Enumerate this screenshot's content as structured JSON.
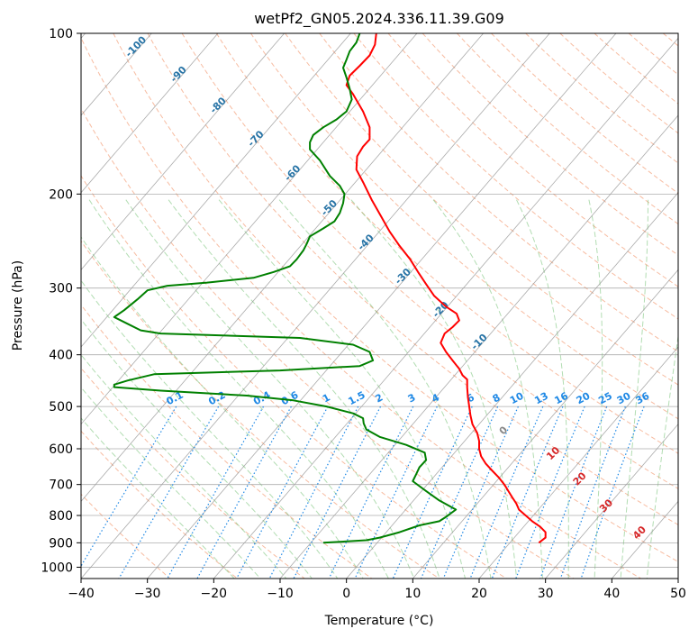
{
  "chart_data": {
    "type": "line",
    "title": "wetPf2_GN05.2024.336.11.39.G09",
    "xlabel": "Temperature (°C)",
    "ylabel": "Pressure (hPa)",
    "xlim": [
      -40,
      50
    ],
    "ylim": [
      1050,
      100
    ],
    "y_scale": "log",
    "x_ticks": [
      -40,
      -30,
      -20,
      -10,
      0,
      10,
      20,
      30,
      40,
      50
    ],
    "y_ticks": [
      100,
      200,
      300,
      400,
      500,
      600,
      700,
      800,
      900,
      1000
    ],
    "grid": true,
    "series": [
      {
        "color": "#ff0000",
        "points": [
          [
            29.0,
            900
          ],
          [
            30.0,
            880
          ],
          [
            30.0,
            860
          ],
          [
            29.2,
            840
          ],
          [
            28.0,
            820
          ],
          [
            27.0,
            800
          ],
          [
            26.0,
            780
          ],
          [
            25.6,
            760
          ],
          [
            25.0,
            740
          ],
          [
            24.4,
            720
          ],
          [
            23.8,
            700
          ],
          [
            23.0,
            680
          ],
          [
            22.0,
            660
          ],
          [
            21.0,
            640
          ],
          [
            20.3,
            620
          ],
          [
            20.0,
            600
          ],
          [
            20.0,
            580
          ],
          [
            19.7,
            560
          ],
          [
            19.0,
            540
          ],
          [
            18.7,
            520
          ],
          [
            18.5,
            500
          ],
          [
            18.3,
            480
          ],
          [
            18.2,
            460
          ],
          [
            18.2,
            445
          ],
          [
            17.5,
            437
          ],
          [
            17.0,
            425
          ],
          [
            16.0,
            410
          ],
          [
            15.0,
            395
          ],
          [
            14.2,
            380
          ],
          [
            14.8,
            365
          ],
          [
            16.0,
            355
          ],
          [
            17.0,
            345
          ],
          [
            16.6,
            335
          ],
          [
            15.0,
            325
          ],
          [
            13.2,
            310
          ],
          [
            12.0,
            295
          ],
          [
            10.8,
            280
          ],
          [
            9.6,
            265
          ],
          [
            8.0,
            250
          ],
          [
            6.5,
            235
          ],
          [
            5.2,
            220
          ],
          [
            3.8,
            205
          ],
          [
            2.5,
            190
          ],
          [
            1.5,
            180
          ],
          [
            1.6,
            170
          ],
          [
            2.5,
            163
          ],
          [
            3.5,
            158
          ],
          [
            3.5,
            150
          ],
          [
            2.5,
            140
          ],
          [
            1.0,
            130
          ],
          [
            0.0,
            125
          ],
          [
            0.5,
            120
          ],
          [
            2.0,
            115
          ],
          [
            3.5,
            110
          ],
          [
            4.3,
            105
          ],
          [
            4.5,
            100
          ]
        ]
      },
      {
        "color": "#008000",
        "points": [
          [
            -3.5,
            900
          ],
          [
            3.0,
            890
          ],
          [
            5.0,
            880
          ],
          [
            8.0,
            860
          ],
          [
            11.0,
            835
          ],
          [
            14.0,
            820
          ],
          [
            15.0,
            805
          ],
          [
            16.5,
            780
          ],
          [
            14.0,
            750
          ],
          [
            12.0,
            720
          ],
          [
            10.0,
            690
          ],
          [
            10.5,
            670
          ],
          [
            11.0,
            650
          ],
          [
            12.0,
            630
          ],
          [
            11.8,
            610
          ],
          [
            9.0,
            590
          ],
          [
            5.0,
            570
          ],
          [
            3.0,
            552
          ],
          [
            2.6,
            538
          ],
          [
            2.5,
            526
          ],
          [
            1.0,
            515
          ],
          [
            -3.0,
            500
          ],
          [
            -8.0,
            487
          ],
          [
            -15.0,
            477
          ],
          [
            -28.0,
            467
          ],
          [
            -35.0,
            460
          ],
          [
            -35.0,
            455
          ],
          [
            -33.0,
            447
          ],
          [
            -29.0,
            435
          ],
          [
            -10.0,
            428
          ],
          [
            2.0,
            420
          ],
          [
            4.0,
            410
          ],
          [
            3.5,
            395
          ],
          [
            1.0,
            383
          ],
          [
            -7.0,
            372
          ],
          [
            -28.0,
            365
          ],
          [
            -31.0,
            360
          ],
          [
            -33.0,
            350
          ],
          [
            -35.0,
            340
          ],
          [
            -33.5,
            330
          ],
          [
            -31.5,
            315
          ],
          [
            -30.0,
            303
          ],
          [
            -27.0,
            297
          ],
          [
            -21.0,
            293
          ],
          [
            -14.0,
            287
          ],
          [
            -11.0,
            280
          ],
          [
            -8.5,
            273
          ],
          [
            -7.5,
            265
          ],
          [
            -6.5,
            255
          ],
          [
            -6.0,
            248
          ],
          [
            -5.5,
            240
          ],
          [
            -3.5,
            232
          ],
          [
            -1.8,
            225
          ],
          [
            -1.0,
            217
          ],
          [
            -0.5,
            208
          ],
          [
            -0.3,
            200
          ],
          [
            -1.0,
            193
          ],
          [
            -2.5,
            185
          ],
          [
            -4.0,
            173
          ],
          [
            -5.5,
            165
          ],
          [
            -5.5,
            160
          ],
          [
            -5.0,
            155
          ],
          [
            -3.5,
            150
          ],
          [
            -1.5,
            145
          ],
          [
            0.0,
            140
          ],
          [
            0.8,
            133
          ],
          [
            0.5,
            127
          ],
          [
            0.0,
            121
          ],
          [
            -0.5,
            116
          ],
          [
            0.0,
            112
          ],
          [
            0.5,
            108
          ],
          [
            1.5,
            104
          ],
          [
            2.0,
            100
          ]
        ]
      }
    ],
    "dry_adiabat_labels": [
      "-100",
      "-90",
      "-80",
      "-70",
      "-60",
      "-50",
      "-40",
      "-30",
      "-20",
      "-10"
    ],
    "mixing_ratio_labels": [
      "0.1",
      "0.2",
      "0.4",
      "0.6",
      "1",
      "1.5",
      "2",
      "3",
      "4",
      "6",
      "8",
      "10",
      "13",
      "16",
      "20",
      "25",
      "30",
      "36"
    ],
    "moist_adiabat_labels": [
      "0",
      "10",
      "20",
      "30",
      "40"
    ],
    "colors": {
      "dry_adiabat": "#f4a582",
      "moist_adiabat": "#66bb66",
      "mixing_ratio": "#1e88e5",
      "isotherm": "#888888",
      "dry_label": "#2874a6",
      "moist_label": "#d62728",
      "zero_label": "#888888"
    }
  }
}
